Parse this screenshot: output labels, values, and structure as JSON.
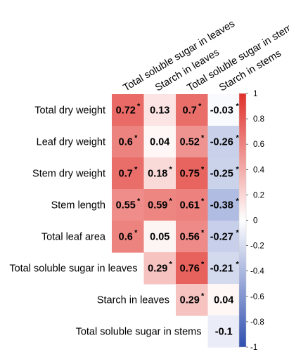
{
  "chart_data": {
    "type": "heatmap",
    "rows": [
      "Total dry weight",
      "Leaf dry weight",
      "Stem dry weight",
      "Stem length",
      "Total leaf area",
      "Total soluble sugar in leaves",
      "Starch in leaves",
      "Total soluble sugar in stems"
    ],
    "columns": [
      "Total soluble sugar in leaves",
      "Starch in leaves",
      "Total soluble sugar in stems",
      "Starch in stems"
    ],
    "cells": [
      [
        {
          "v": 0.72,
          "label": "0.72",
          "sig": true
        },
        {
          "v": 0.13,
          "label": "0.13",
          "sig": false
        },
        {
          "v": 0.7,
          "label": "0.7",
          "sig": true
        },
        {
          "v": -0.03,
          "label": "-0.03",
          "sig": true
        }
      ],
      [
        {
          "v": 0.6,
          "label": "0.6",
          "sig": true
        },
        {
          "v": 0.04,
          "label": "0.04",
          "sig": false
        },
        {
          "v": 0.52,
          "label": "0.52",
          "sig": true
        },
        {
          "v": -0.26,
          "label": "-0.26",
          "sig": true
        }
      ],
      [
        {
          "v": 0.7,
          "label": "0.7",
          "sig": true
        },
        {
          "v": 0.18,
          "label": "0.18",
          "sig": true
        },
        {
          "v": 0.75,
          "label": "0.75",
          "sig": true
        },
        {
          "v": -0.25,
          "label": "-0.25",
          "sig": true
        }
      ],
      [
        {
          "v": 0.55,
          "label": "0.55",
          "sig": true
        },
        {
          "v": 0.59,
          "label": "0.59",
          "sig": true
        },
        {
          "v": 0.61,
          "label": "0.61",
          "sig": true
        },
        {
          "v": -0.38,
          "label": "-0.38",
          "sig": true
        }
      ],
      [
        {
          "v": 0.6,
          "label": "0.6",
          "sig": true
        },
        {
          "v": 0.05,
          "label": "0.05",
          "sig": false
        },
        {
          "v": 0.56,
          "label": "0.56",
          "sig": true
        },
        {
          "v": -0.27,
          "label": "-0.27",
          "sig": true
        }
      ],
      [
        null,
        {
          "v": 0.29,
          "label": "0.29",
          "sig": true
        },
        {
          "v": 0.76,
          "label": "0.76",
          "sig": true
        },
        {
          "v": -0.21,
          "label": "-0.21",
          "sig": true
        }
      ],
      [
        null,
        null,
        {
          "v": 0.29,
          "label": "0.29",
          "sig": true
        },
        {
          "v": 0.04,
          "label": "0.04",
          "sig": false
        }
      ],
      [
        null,
        null,
        null,
        {
          "v": -0.1,
          "label": "-0.1",
          "sig": false
        }
      ]
    ],
    "significance_marker": "*",
    "colorbar": {
      "range": [
        -1,
        1
      ],
      "ticks": [
        "1",
        "0.8",
        "0.6",
        "0.4",
        "0.2",
        "0",
        "-0.2",
        "-0.4",
        "-0.6",
        "-0.8",
        "-1"
      ],
      "colors": {
        "negative": "#2f4fb0",
        "zero": "#ffffff",
        "positive": "#e0302a"
      }
    },
    "title": "",
    "xlabel": "",
    "ylabel": ""
  }
}
